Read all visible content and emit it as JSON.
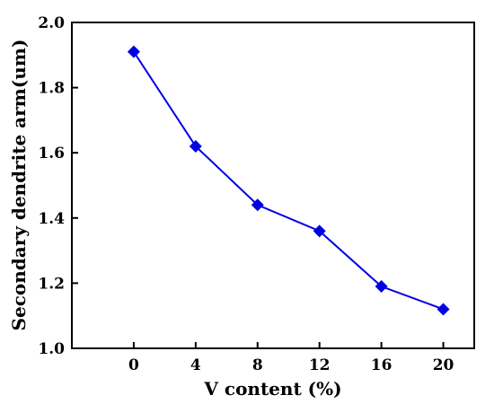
{
  "chart_data": {
    "type": "line",
    "title": "",
    "xlabel": "V content (%)",
    "ylabel": "Secondary dendrite arm(um)",
    "x": [
      0,
      4,
      8,
      12,
      16,
      20
    ],
    "x_tick_labels": [
      "0",
      "4",
      "8",
      "12",
      "16",
      "20"
    ],
    "y_tick_labels": [
      "1.0",
      "1.2",
      "1.4",
      "1.6",
      "1.8",
      "2.0"
    ],
    "y_ticks": [
      1.0,
      1.2,
      1.4,
      1.6,
      1.8,
      2.0
    ],
    "xlim": [
      -4,
      22
    ],
    "ylim": [
      1.0,
      2.0
    ],
    "grid": false,
    "legend": "none",
    "series": [
      {
        "values": [
          1.91,
          1.62,
          1.44,
          1.36,
          1.19,
          1.12
        ],
        "color": "#0000e6",
        "marker": "diamond"
      }
    ]
  }
}
